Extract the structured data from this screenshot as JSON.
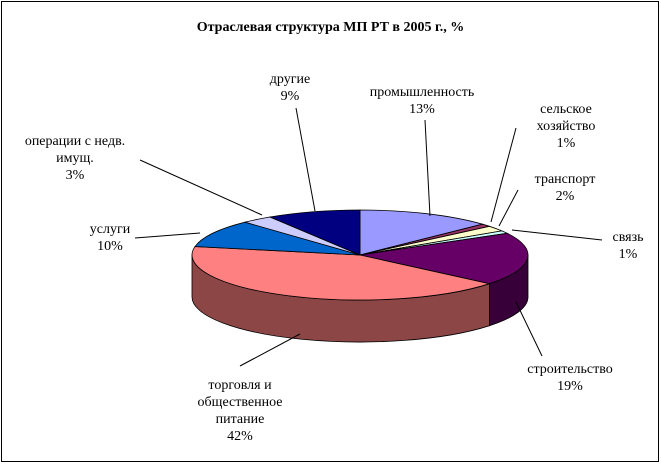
{
  "chart_data": {
    "type": "pie",
    "title": "Отраслевая структура МП РТ в 2005 г., %",
    "categories": [
      "промышленность",
      "сельское\nхозяйство",
      "транспорт",
      "связь",
      "строительство",
      "торговля и\nобщественное\nпитание",
      "услуги",
      "операции с недв.\nимущ.",
      "другие"
    ],
    "values": [
      13,
      1,
      2,
      1,
      19,
      42,
      10,
      3,
      9
    ],
    "value_labels": [
      "13%",
      "1%",
      "2%",
      "1%",
      "19%",
      "42%",
      "10%",
      "3%",
      "9%"
    ],
    "colors": [
      "#9999ff",
      "#993366",
      "#ffffcc",
      "#ccffff",
      "#660066",
      "#ff8080",
      "#0066cc",
      "#ccccff",
      "#000080"
    ]
  }
}
